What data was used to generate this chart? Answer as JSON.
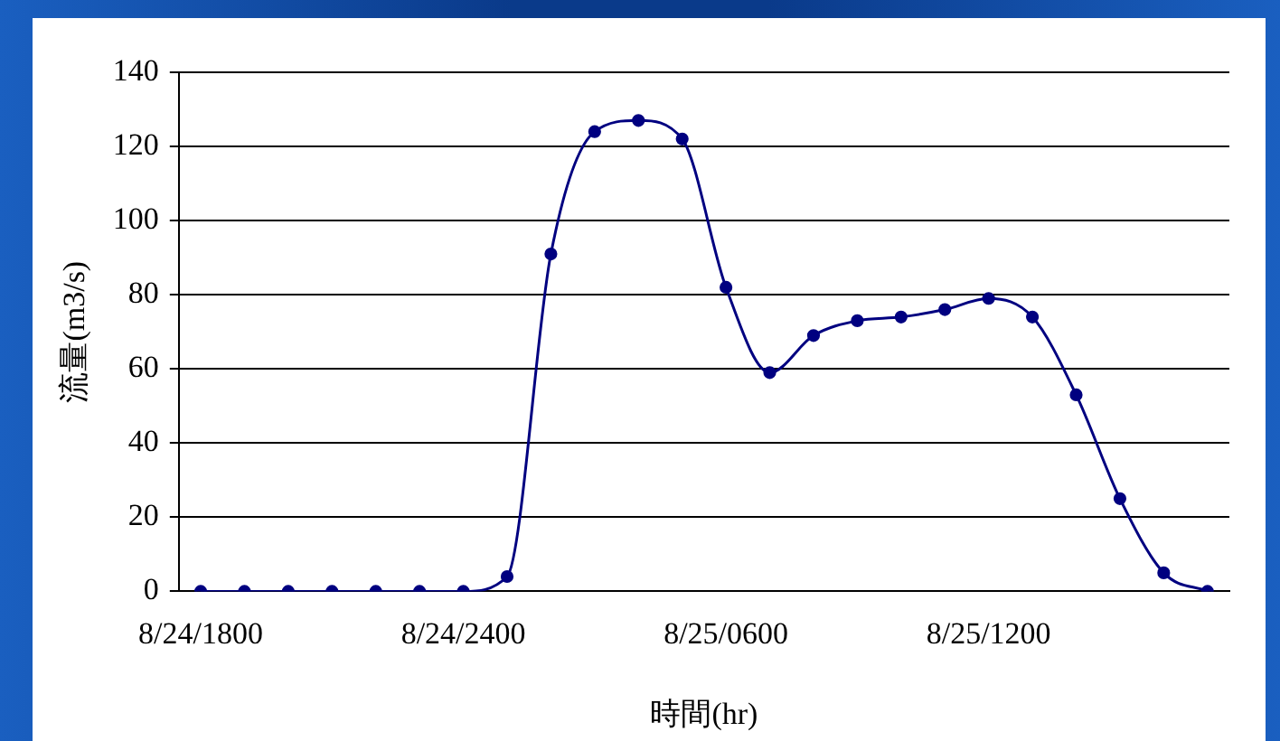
{
  "chart_data": {
    "type": "line",
    "xlabel": "時間(hr)",
    "ylabel": "流量(m3/s)",
    "categories": [
      "8/24/1800",
      null,
      null,
      null,
      null,
      null,
      "8/24/2400",
      null,
      null,
      null,
      null,
      null,
      "8/25/0600",
      null,
      null,
      null,
      null,
      null,
      "8/25/1200",
      null,
      null,
      null,
      null,
      null
    ],
    "values": [
      0,
      0,
      0,
      0,
      0,
      0,
      0,
      4,
      91,
      124,
      127,
      122,
      82,
      59,
      69,
      73,
      74,
      76,
      79,
      74,
      53,
      25,
      5,
      0
    ],
    "color": "#000080",
    "ylim": [
      0,
      140
    ],
    "yticks": [
      0,
      20,
      40,
      60,
      80,
      100,
      120,
      140
    ],
    "grid": "y",
    "marker": "circle"
  }
}
